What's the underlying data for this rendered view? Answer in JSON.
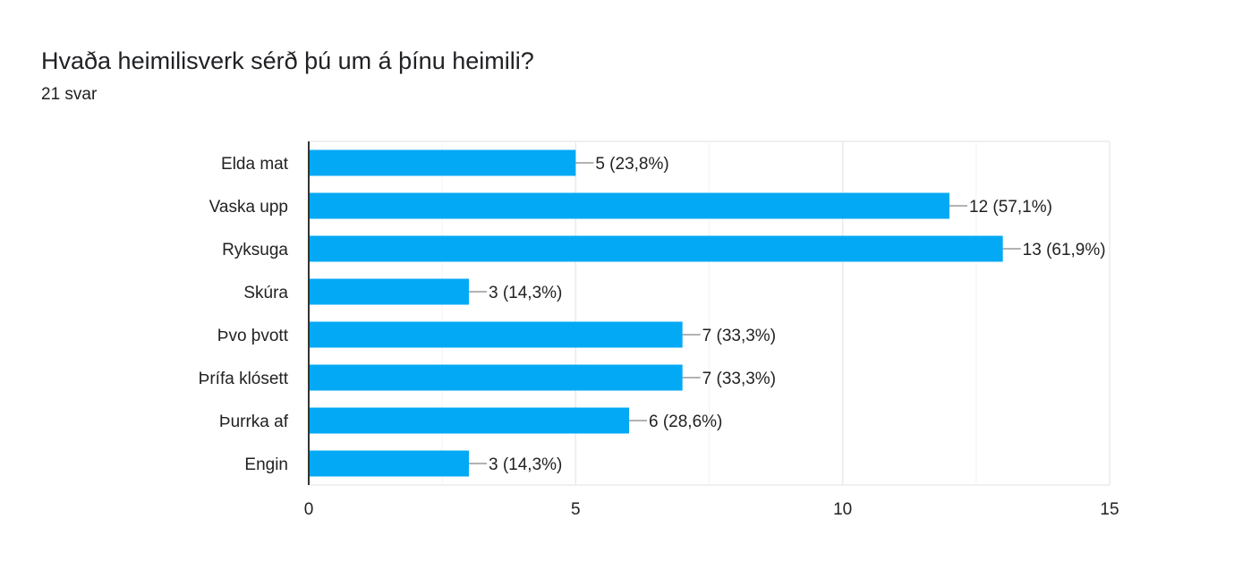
{
  "question": {
    "title": "Hvaða heimilisverk sérð þú um á þínu heimili?",
    "response_count": "21 svar"
  },
  "colors": {
    "bar": "#03a9f4",
    "grid": "#ebebeb",
    "axis": "#333333",
    "leader": "#999999"
  },
  "chart_data": {
    "type": "bar",
    "orientation": "horizontal",
    "categories": [
      "Elda mat",
      "Vaska upp",
      "Ryksuga",
      "Skúra",
      "Þvo þvott",
      "Þrífa klósett",
      "Þurrka af",
      "Engin"
    ],
    "values": [
      5,
      12,
      13,
      3,
      7,
      7,
      6,
      3
    ],
    "data_labels": [
      "5 (23,8%)",
      "12 (57,1%)",
      "13 (61,9%)",
      "3 (14,3%)",
      "7 (33,3%)",
      "7 (33,3%)",
      "6 (28,6%)",
      "3 (14,3%)"
    ],
    "xlim": [
      0,
      15
    ],
    "x_ticks": [
      0,
      5,
      10,
      15
    ],
    "x_minor_gridlines": [
      2.5,
      7.5,
      12.5
    ],
    "grid": true,
    "legend": "none",
    "xlabel": "",
    "ylabel": ""
  }
}
